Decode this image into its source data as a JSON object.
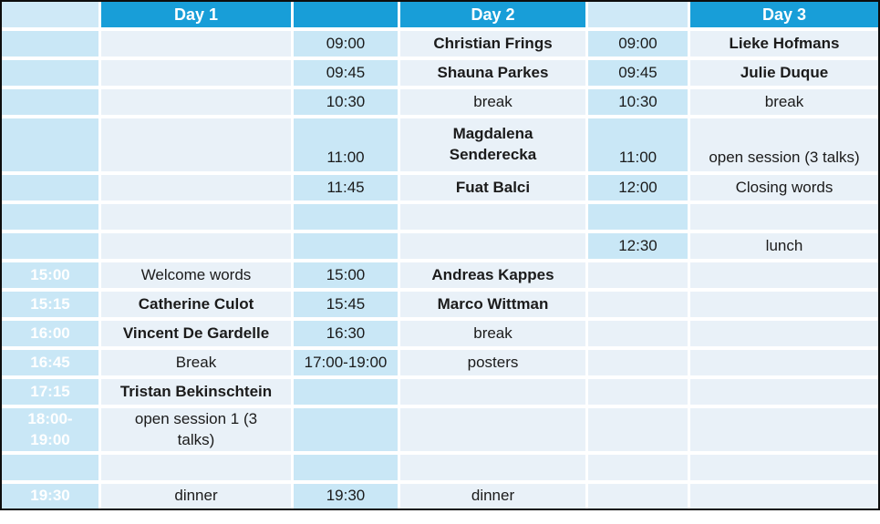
{
  "colors": {
    "accent_cyan": "#189ed8",
    "time_column_blue": "#c9e7f6",
    "event_column_blue": "#e9f1f8",
    "outer_border": "#0d0d0d",
    "day1_time_text": "#ffffff",
    "body_text": "#1b1b1b"
  },
  "table": {
    "header": {
      "cells": [
        {
          "text": "",
          "type": "time-head"
        },
        {
          "text": "Day 1",
          "type": "day-head"
        },
        {
          "text": "",
          "type": "day-head"
        },
        {
          "text": "Day 2",
          "type": "day-head"
        },
        {
          "text": "",
          "type": "time-head"
        },
        {
          "text": "Day 3",
          "type": "day-head"
        }
      ]
    },
    "rows": [
      {
        "cells": [
          {
            "text": ""
          },
          {
            "text": ""
          },
          {
            "text": "09:00"
          },
          {
            "text": "Christian Frings",
            "bold": true
          },
          {
            "text": "09:00"
          },
          {
            "text": "Lieke Hofmans",
            "bold": true
          }
        ]
      },
      {
        "cells": [
          {
            "text": ""
          },
          {
            "text": ""
          },
          {
            "text": "09:45"
          },
          {
            "text": "Shauna Parkes",
            "bold": true
          },
          {
            "text": "09:45"
          },
          {
            "text": "Julie Duque",
            "bold": true
          }
        ]
      },
      {
        "cells": [
          {
            "text": ""
          },
          {
            "text": ""
          },
          {
            "text": "10:30"
          },
          {
            "text": "break"
          },
          {
            "text": "10:30"
          },
          {
            "text": "break"
          }
        ]
      },
      {
        "cells": [
          {
            "text": ""
          },
          {
            "text": ""
          },
          {
            "text": "11:00",
            "va": "bottom"
          },
          {
            "text": "Magdalena\nSenderecka",
            "bold": true
          },
          {
            "text": "11:00",
            "va": "bottom"
          },
          {
            "text": "open session (3 talks)",
            "va": "bottom"
          }
        ]
      },
      {
        "cells": [
          {
            "text": ""
          },
          {
            "text": ""
          },
          {
            "text": "11:45"
          },
          {
            "text": "Fuat Balci",
            "bold": true
          },
          {
            "text": "12:00"
          },
          {
            "text": "Closing words"
          }
        ]
      },
      {
        "cells": [
          {
            "text": ""
          },
          {
            "text": ""
          },
          {
            "text": ""
          },
          {
            "text": ""
          },
          {
            "text": ""
          },
          {
            "text": ""
          }
        ]
      },
      {
        "cells": [
          {
            "text": ""
          },
          {
            "text": ""
          },
          {
            "text": ""
          },
          {
            "text": ""
          },
          {
            "text": "12:30"
          },
          {
            "text": "lunch"
          }
        ]
      },
      {
        "cells": [
          {
            "text": "15:00"
          },
          {
            "text": "Welcome words"
          },
          {
            "text": "15:00"
          },
          {
            "text": "Andreas Kappes",
            "bold": true
          },
          {
            "text": ""
          },
          {
            "text": ""
          }
        ]
      },
      {
        "cells": [
          {
            "text": "15:15"
          },
          {
            "text": "Catherine Culot",
            "bold": true
          },
          {
            "text": "15:45"
          },
          {
            "text": "Marco Wittman",
            "bold": true
          },
          {
            "text": ""
          },
          {
            "text": ""
          }
        ]
      },
      {
        "cells": [
          {
            "text": "16:00"
          },
          {
            "text": "Vincent De Gardelle",
            "bold": true
          },
          {
            "text": "16:30"
          },
          {
            "text": "break"
          },
          {
            "text": ""
          },
          {
            "text": ""
          }
        ]
      },
      {
        "cells": [
          {
            "text": "16:45"
          },
          {
            "text": "Break"
          },
          {
            "text": "17:00-19:00"
          },
          {
            "text": "posters"
          },
          {
            "text": ""
          },
          {
            "text": ""
          }
        ]
      },
      {
        "cells": [
          {
            "text": "17:15"
          },
          {
            "text": "Tristan Bekinschtein",
            "bold": true
          },
          {
            "text": ""
          },
          {
            "text": ""
          },
          {
            "text": ""
          },
          {
            "text": ""
          }
        ]
      },
      {
        "cells": [
          {
            "text": "18:00-\n19:00"
          },
          {
            "text": "open session 1 (3\ntalks)"
          },
          {
            "text": ""
          },
          {
            "text": ""
          },
          {
            "text": ""
          },
          {
            "text": ""
          }
        ]
      },
      {
        "cells": [
          {
            "text": ""
          },
          {
            "text": ""
          },
          {
            "text": ""
          },
          {
            "text": ""
          },
          {
            "text": ""
          },
          {
            "text": ""
          }
        ]
      },
      {
        "cells": [
          {
            "text": "19:30"
          },
          {
            "text": "dinner"
          },
          {
            "text": "19:30"
          },
          {
            "text": "dinner"
          },
          {
            "text": ""
          },
          {
            "text": ""
          }
        ]
      }
    ],
    "day3_time_col_shaded_through_row": 6
  }
}
